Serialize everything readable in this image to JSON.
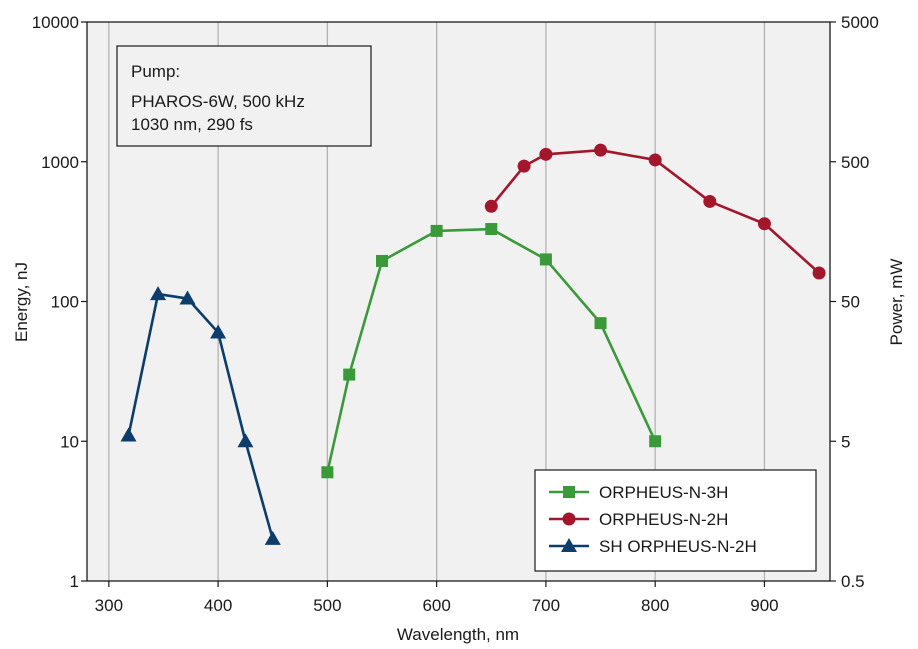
{
  "chart_data": {
    "type": "line",
    "xlabel": "Wavelength, nm",
    "ylabel": "Energy, nJ",
    "y2label": "Power, mW",
    "xlim": [
      280,
      960
    ],
    "xticks": [
      300,
      400,
      500,
      600,
      700,
      800,
      900
    ],
    "yscale": "log",
    "ylim": [
      1,
      10000
    ],
    "yticks": [
      1,
      10,
      100,
      1000,
      10000
    ],
    "y2lim": [
      0.5,
      5000
    ],
    "y2ticks": [
      0.5,
      5,
      50,
      500,
      5000
    ],
    "grid": "vertical",
    "legend_position": "bottom-right",
    "annotation": {
      "lines": [
        "Pump:",
        "PHAROS-6W, 500 kHz",
        "1030 nm, 290 fs"
      ],
      "position": "top-left"
    },
    "series": [
      {
        "name": "ORPHEUS-N-3H",
        "color": "#3a9a3a",
        "marker": "square",
        "x": [
          500,
          520,
          550,
          600,
          650,
          700,
          750,
          800
        ],
        "y": [
          6,
          30,
          195,
          320,
          330,
          200,
          70,
          10
        ]
      },
      {
        "name": "ORPHEUS-N-2H",
        "color": "#a3172c",
        "marker": "circle",
        "x": [
          650,
          680,
          700,
          750,
          800,
          850,
          900,
          950
        ],
        "y": [
          480,
          930,
          1130,
          1210,
          1030,
          520,
          360,
          160
        ]
      },
      {
        "name": "SH ORPHEUS-N-2H",
        "color": "#0c3d6b",
        "marker": "triangle",
        "x": [
          318,
          345,
          372,
          400,
          425,
          450
        ],
        "y": [
          11,
          113,
          105,
          60,
          10,
          2
        ]
      }
    ]
  }
}
